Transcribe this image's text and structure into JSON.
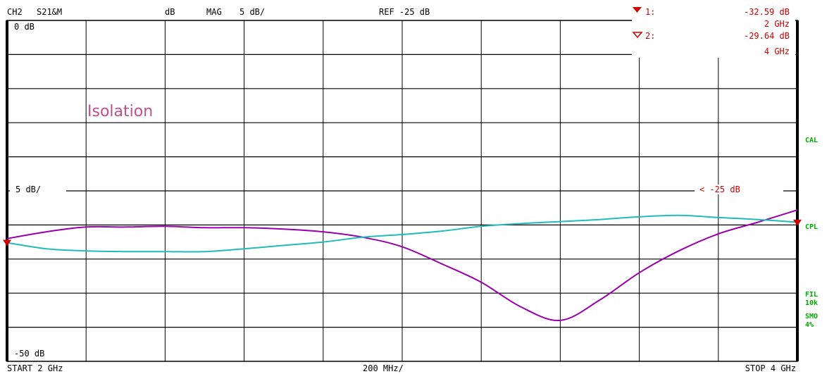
{
  "header": {
    "channel": "CH2",
    "parameter": "S21&M",
    "unit": "dB",
    "format": "MAG",
    "scale": "5 dB/",
    "reference": "REF -25 dB"
  },
  "markers": [
    {
      "label": "1:",
      "value": "-32.59 dB",
      "freq": "2 GHz"
    },
    {
      "label": "2:",
      "value": "-29.64 dB",
      "freq": "4 GHz"
    }
  ],
  "footer": {
    "start": "START  2 GHz",
    "span": "200 MHz/",
    "stop": "STOP 4 GHz"
  },
  "side_labels": {
    "cal": "CAL",
    "cpl": "CPL",
    "fil": "FIL",
    "fil_value": "10k",
    "smo": "SMO",
    "smo_value": "4%"
  },
  "axis": {
    "top_label": "0 dB",
    "mid_label": "5 dB/",
    "bottom_label": "-50 dB",
    "ref_marker_label": "< -25 dB"
  },
  "annotation": "Isolation",
  "colors": {
    "header": "#000000",
    "marker": "#cc0000",
    "status": "#00aa00",
    "grid": "#000000",
    "trace1": "#9900aa",
    "trace2": "#22bbbb",
    "annotation": "#c0508a"
  },
  "chart_data": {
    "type": "line",
    "xlabel": "",
    "ylabel": "",
    "xlim": [
      2.0,
      4.0
    ],
    "ylim": [
      -50,
      0
    ],
    "x_unit": "GHz",
    "y_unit": "dB",
    "grid": true,
    "series": [
      {
        "color": "#9900aa",
        "x": [
          2.0,
          2.1,
          2.2,
          2.3,
          2.4,
          2.5,
          2.6,
          2.7,
          2.8,
          2.9,
          3.0,
          3.1,
          3.2,
          3.3,
          3.4,
          3.5,
          3.6,
          3.7,
          3.8,
          3.9,
          4.0
        ],
        "y": [
          -32.0,
          -31.0,
          -30.3,
          -30.3,
          -30.2,
          -30.4,
          -30.4,
          -30.6,
          -31.0,
          -31.8,
          -33.2,
          -35.7,
          -38.4,
          -42.0,
          -44.0,
          -41.0,
          -37.0,
          -33.8,
          -31.3,
          -29.6,
          -27.8
        ]
      },
      {
        "color": "#22bbbb",
        "x": [
          2.0,
          2.1,
          2.2,
          2.3,
          2.4,
          2.5,
          2.6,
          2.7,
          2.8,
          2.9,
          3.0,
          3.1,
          3.2,
          3.3,
          3.4,
          3.5,
          3.6,
          3.7,
          3.8,
          3.9,
          4.0
        ],
        "y": [
          -32.6,
          -33.5,
          -33.8,
          -33.9,
          -33.9,
          -33.9,
          -33.5,
          -33.0,
          -32.5,
          -31.8,
          -31.4,
          -30.9,
          -30.2,
          -29.8,
          -29.5,
          -29.2,
          -28.8,
          -28.6,
          -28.9,
          -29.2,
          -29.6
        ]
      }
    ],
    "markers": [
      {
        "x": 2.0,
        "y": -32.59
      },
      {
        "x": 4.0,
        "y": -29.64
      }
    ]
  }
}
